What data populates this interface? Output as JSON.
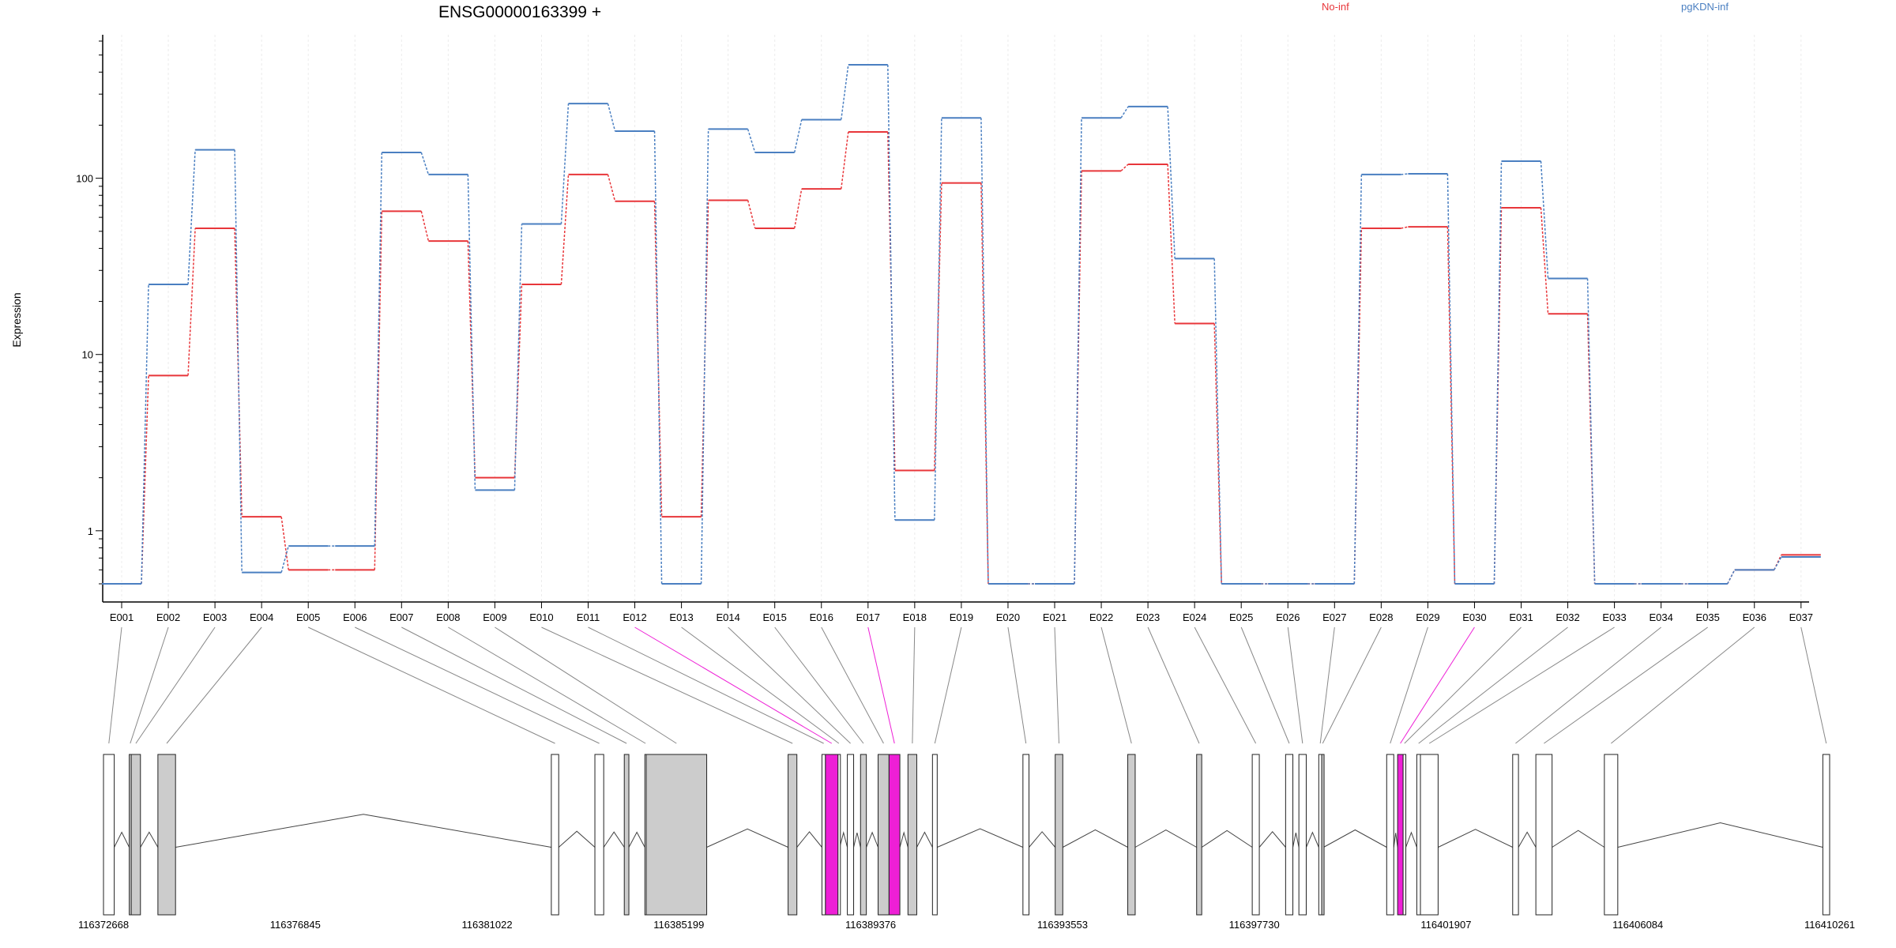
{
  "chart_data": {
    "type": "line",
    "title": "ENSG00000163399 +",
    "ylabel": "Expression",
    "xlabel": "",
    "y_scale": "log",
    "y_ticks": [
      1,
      10,
      100
    ],
    "ylim": [
      0.5,
      600
    ],
    "grid": true,
    "legend_placement": "top-right",
    "categories": [
      "E001",
      "E002",
      "E003",
      "E004",
      "E005",
      "E006",
      "E007",
      "E008",
      "E009",
      "E010",
      "E011",
      "E012",
      "E013",
      "E014",
      "E015",
      "E016",
      "E017",
      "E018",
      "E019",
      "E020",
      "E021",
      "E022",
      "E023",
      "E024",
      "E025",
      "E026",
      "E027",
      "E028",
      "E029",
      "E030",
      "E031",
      "E032",
      "E033",
      "E034",
      "E035",
      "E036",
      "E037"
    ],
    "series": [
      {
        "name": "No-inf",
        "color": "#e8363a",
        "values": [
          0.5,
          7.6,
          52,
          1.2,
          0.6,
          0.6,
          65,
          44,
          2.0,
          25,
          105,
          74,
          1.2,
          75,
          52,
          87,
          183,
          2.2,
          94,
          0.5,
          0.5,
          110,
          120,
          15,
          0.5,
          0.5,
          0.5,
          52,
          53,
          0.5,
          68,
          17,
          0.5,
          0.5,
          0.5,
          0.6,
          0.73
        ]
      },
      {
        "name": "pgKDN-inf",
        "color": "#4a7fc1",
        "values": [
          0.5,
          25,
          145,
          0.58,
          0.82,
          0.82,
          140,
          105,
          1.7,
          55,
          265,
          185,
          0.5,
          190,
          140,
          215,
          440,
          1.15,
          220,
          0.5,
          0.5,
          220,
          255,
          35,
          0.5,
          0.5,
          0.5,
          105,
          106,
          0.5,
          125,
          27,
          0.5,
          0.5,
          0.5,
          0.6,
          0.71
        ]
      }
    ],
    "gene_model": {
      "start_coord": 116372668,
      "end_coord": 116410261,
      "coord_labels": [
        "116372668",
        "116376845",
        "116381022",
        "116385199",
        "116389376",
        "116393553",
        "116397730",
        "116401907",
        "116406084",
        "116410261"
      ],
      "highlight_color": "#ee1fd6",
      "exon_fill_color": "#cccccc",
      "exons": [
        {
          "id": "E001",
          "start": 116372668,
          "end": 116372902,
          "style": "white"
        },
        {
          "id": "E002",
          "start": 116373229,
          "end": 116373272,
          "style": "grey"
        },
        {
          "id": "E003",
          "start": 116373272,
          "end": 116373473,
          "style": "grey"
        },
        {
          "id": "E004",
          "start": 116373853,
          "end": 116374237,
          "style": "grey"
        },
        {
          "id": "E005",
          "start": 116382421,
          "end": 116382582,
          "style": "white"
        },
        {
          "id": "E006",
          "start": 116383370,
          "end": 116383562,
          "style": "white"
        },
        {
          "id": "E007",
          "start": 116384010,
          "end": 116384110,
          "style": "grey"
        },
        {
          "id": "E008",
          "start": 116384458,
          "end": 116384488,
          "style": "white"
        },
        {
          "id": "E009",
          "start": 116384488,
          "end": 116385805,
          "style": "grey"
        },
        {
          "id": "E010",
          "start": 116387578,
          "end": 116387769,
          "style": "grey"
        },
        {
          "id": "E011",
          "start": 116388315,
          "end": 116388391,
          "style": "white"
        },
        {
          "id": "E012",
          "start": 116388391,
          "end": 116388665,
          "style": "highlight"
        },
        {
          "id": "E013",
          "start": 116388665,
          "end": 116388702,
          "style": "white"
        },
        {
          "id": "E014",
          "start": 116388868,
          "end": 116389005,
          "style": "white"
        },
        {
          "id": "E015",
          "start": 116389155,
          "end": 116389282,
          "style": "grey"
        },
        {
          "id": "E016",
          "start": 116389538,
          "end": 116389776,
          "style": "grey"
        },
        {
          "id": "E017",
          "start": 116389776,
          "end": 116390012,
          "style": "highlight"
        },
        {
          "id": "E018",
          "start": 116390188,
          "end": 116390380,
          "style": "grey"
        },
        {
          "id": "E019",
          "start": 116390722,
          "end": 116390825,
          "style": "white"
        },
        {
          "id": "E020",
          "start": 116392692,
          "end": 116392824,
          "style": "white"
        },
        {
          "id": "E021",
          "start": 116393395,
          "end": 116393560,
          "style": "grey"
        },
        {
          "id": "E022",
          "start": 116394975,
          "end": 116395137,
          "style": "grey"
        },
        {
          "id": "E023",
          "start": 116396475,
          "end": 116396586,
          "style": "grey"
        },
        {
          "id": "E024",
          "start": 116397686,
          "end": 116397840,
          "style": "white"
        },
        {
          "id": "E025",
          "start": 116398413,
          "end": 116398571,
          "style": "white"
        },
        {
          "id": "E026",
          "start": 116398702,
          "end": 116398862,
          "style": "white"
        },
        {
          "id": "E027",
          "start": 116399135,
          "end": 116399199,
          "style": "white"
        },
        {
          "id": "E028",
          "start": 116399199,
          "end": 116399240,
          "style": "grey"
        },
        {
          "id": "E029",
          "start": 116400614,
          "end": 116400768,
          "style": "white"
        },
        {
          "id": "E030",
          "start": 116400852,
          "end": 116400972,
          "style": "highlight"
        },
        {
          "id": "E031",
          "start": 116400972,
          "end": 116401031,
          "style": "white"
        },
        {
          "id": "E032",
          "start": 116401270,
          "end": 116401349,
          "style": "white"
        },
        {
          "id": "E033",
          "start": 116401349,
          "end": 116401734,
          "style": "white"
        },
        {
          "id": "E034",
          "start": 116403358,
          "end": 116403484,
          "style": "white"
        },
        {
          "id": "E035",
          "start": 116403863,
          "end": 116404216,
          "style": "white"
        },
        {
          "id": "E036",
          "start": 116405355,
          "end": 116405647,
          "style": "white"
        },
        {
          "id": "E037",
          "start": 116410113,
          "end": 116410261,
          "style": "white"
        }
      ]
    }
  }
}
